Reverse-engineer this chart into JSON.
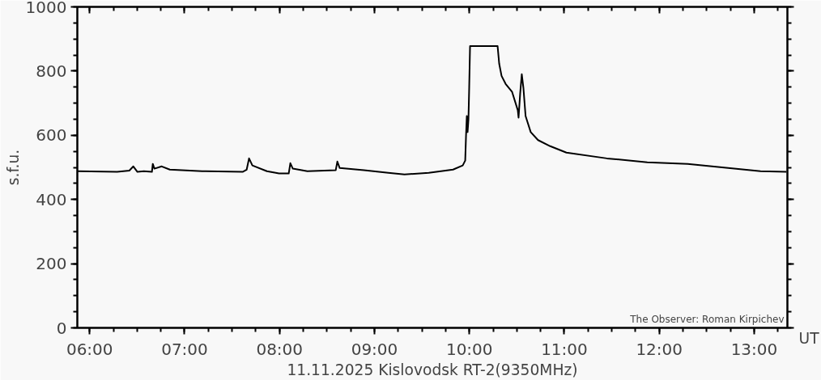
{
  "chart_data": {
    "type": "line",
    "xlabel": "11.11.2025 Kislovodsk RT-2(9350MHz)",
    "ylabel": "s.f.u.",
    "annotations": [
      "The Observer: Roman Kirpichev",
      "UT"
    ],
    "x": [
      5.872,
      6.29,
      6.418,
      6.46,
      6.503,
      6.571,
      6.656,
      6.665,
      6.682,
      6.759,
      6.844,
      7.185,
      7.611,
      7.654,
      7.679,
      7.714,
      7.867,
      7.995,
      8.097,
      8.114,
      8.14,
      8.293,
      8.592,
      8.609,
      8.634,
      8.89,
      9.146,
      9.316,
      9.572,
      9.828,
      9.93,
      9.956,
      9.964,
      9.973,
      9.981,
      9.99,
      9.998,
      10.007,
      10.297,
      10.314,
      10.339,
      10.382,
      10.45,
      10.51,
      10.518,
      10.535,
      10.552,
      10.569,
      10.592,
      10.646,
      10.723,
      10.851,
      11.022,
      11.448,
      11.874,
      12.3,
      12.726,
      13.067,
      13.34
    ],
    "series": [
      {
        "color": "#000000",
        "values": [
          488,
          486,
          490,
          503,
          486,
          488,
          486,
          511,
          496,
          503,
          493,
          488,
          486,
          493,
          528,
          506,
          488,
          481,
          481,
          513,
          496,
          488,
          491,
          518,
          498,
          491,
          483,
          478,
          483,
          493,
          506,
          521,
          593,
          660,
          610,
          648,
          748,
          878,
          878,
          823,
          785,
          760,
          735,
          678,
          655,
          730,
          790,
          748,
          660,
          610,
          585,
          566,
          546,
          528,
          516,
          511,
          498,
          488,
          486
        ]
      }
    ],
    "xlim": [
      5.87,
      13.35
    ],
    "ylim": [
      0,
      1000
    ],
    "xticks": [
      {
        "value": 6,
        "label": "06:00"
      },
      {
        "value": 7,
        "label": "07:00"
      },
      {
        "value": 8,
        "label": "08:00"
      },
      {
        "value": 9,
        "label": "09:00"
      },
      {
        "value": 10,
        "label": "10:00"
      },
      {
        "value": 11,
        "label": "11:00"
      },
      {
        "value": 12,
        "label": "12:00"
      },
      {
        "value": 13,
        "label": "13:00"
      }
    ],
    "yticks": [
      0,
      200,
      400,
      600,
      800,
      1000
    ],
    "grid": false,
    "line_style": "solid"
  }
}
